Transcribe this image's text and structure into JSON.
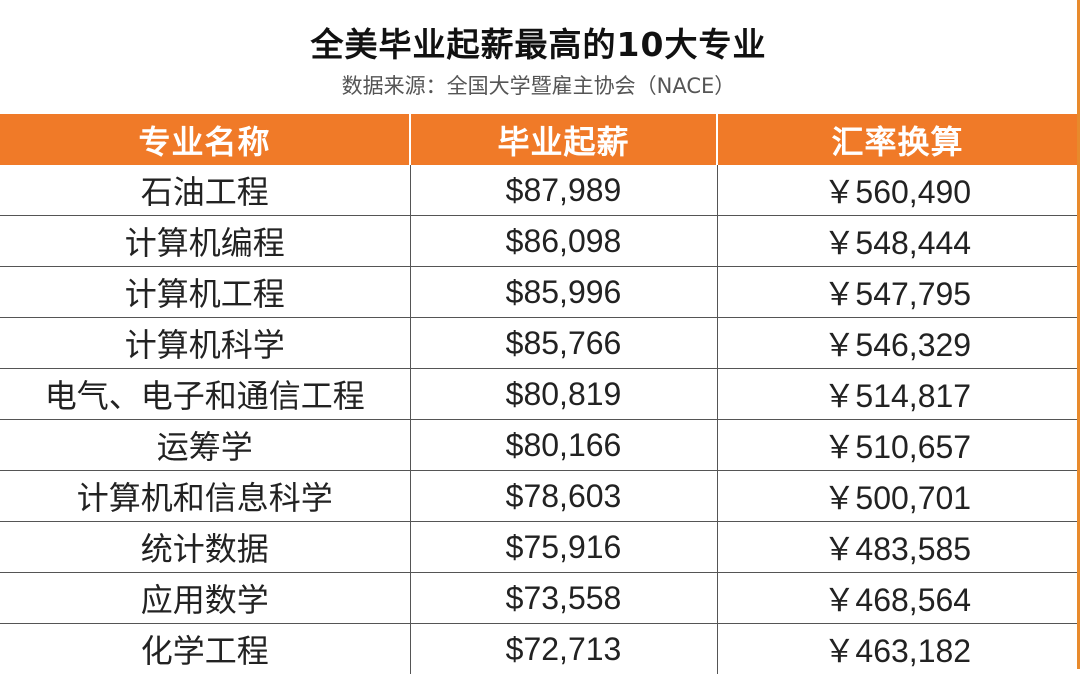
{
  "header": {
    "title": "全美毕业起薪最高的10大专业",
    "subtitle": "数据来源：全国大学暨雇主协会（NACE）"
  },
  "table": {
    "columns": [
      "专业名称",
      "毕业起薪",
      "汇率换算"
    ],
    "rows": [
      [
        "石油工程",
        "$87,989",
        "￥560,490"
      ],
      [
        "计算机编程",
        "$86,098",
        "￥548,444"
      ],
      [
        "计算机工程",
        "$85,996",
        "￥547,795"
      ],
      [
        "计算机科学",
        "$85,766",
        "￥546,329"
      ],
      [
        "电气、电子和通信工程",
        "$80,819",
        "￥514,817"
      ],
      [
        "运筹学",
        "$80,166",
        "￥510,657"
      ],
      [
        "计算机和信息科学",
        "$78,603",
        "￥500,701"
      ],
      [
        "统计数据",
        "$75,916",
        "￥483,585"
      ],
      [
        "应用数学",
        "$73,558",
        "￥468,564"
      ],
      [
        "化学工程",
        "$72,713",
        "￥463,182"
      ]
    ]
  },
  "colors": {
    "header_bg": "#f07a28",
    "header_text": "#ffffff",
    "body_text": "#222222",
    "grid": "#555555"
  }
}
